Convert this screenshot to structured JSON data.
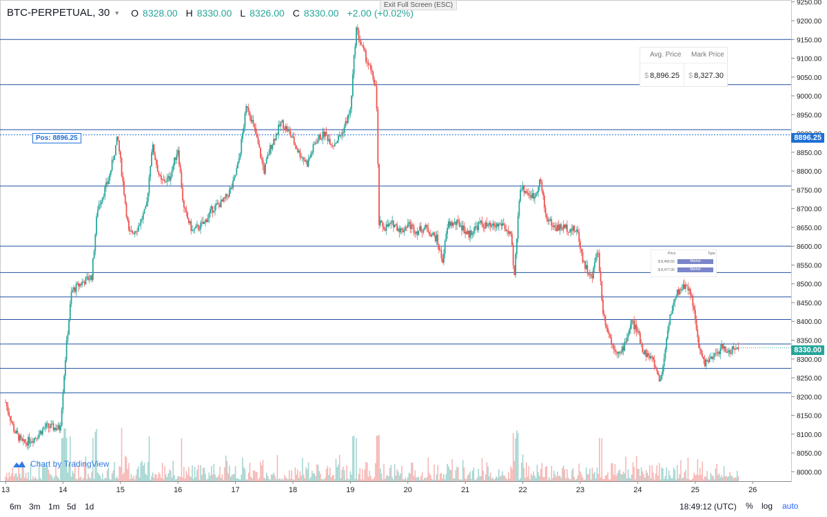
{
  "header": {
    "symbol": "BTC-PERPETUAL, 30",
    "open_label": "O",
    "open": "8328.00",
    "high_label": "H",
    "high": "8330.00",
    "low_label": "L",
    "low": "8326.00",
    "close_label": "C",
    "close": "8330.00",
    "change": "+2.00 (+0.02%)"
  },
  "exit_fullscreen": "Exit Full Screen (ESC)",
  "position_label": "Pos: 8896.25",
  "position_tag": "8896.25",
  "last_price_tag": "8330.00",
  "avg_panel": {
    "avg_header": "Avg. Price",
    "mark_header": "Mark Price",
    "currency": "$",
    "avg_value": "8,896.25",
    "mark_value": "8,327.30"
  },
  "orders_panel": {
    "price_header": "Price",
    "type_header": "Type",
    "rows": [
      {
        "price": "$ 8,499.50",
        "type": "Market"
      },
      {
        "price": "$ 8,477.00",
        "type": "Market"
      }
    ]
  },
  "attribution": "Chart by TradingView",
  "bottom_bar": {
    "ranges": [
      "6m",
      "3m",
      "1m",
      "5d",
      "1d"
    ],
    "clock": "18:49:12 (UTC)",
    "percent": "%",
    "log": "log",
    "auto": "auto"
  },
  "colors": {
    "up": "#26a69a",
    "down": "#ef5350",
    "level_line": "#1e4fa0",
    "position_line": "#1e6fd6",
    "volume_up": "#a5d6d2",
    "volume_down": "#f6b7b5"
  },
  "chart_data": {
    "type": "candlestick",
    "symbol": "BTC-PERPETUAL",
    "timeframe": "30",
    "y_range": [
      7975,
      9255
    ],
    "y_ticks": [
      8000,
      8050,
      8100,
      8150,
      8200,
      8250,
      8300,
      8350,
      8400,
      8450,
      8500,
      8550,
      8600,
      8650,
      8700,
      8750,
      8800,
      8850,
      8900,
      8950,
      9000,
      9050,
      9100,
      9150,
      9200,
      9250
    ],
    "x_ticks": [
      "13",
      "14",
      "15",
      "16",
      "17",
      "18",
      "19",
      "20",
      "21",
      "22",
      "23",
      "24",
      "25",
      "26"
    ],
    "x_range_days": [
      13,
      26
    ],
    "position_price": 8896.25,
    "last_price": 8330.0,
    "horizontal_levels": [
      9150,
      9030,
      8910,
      8760,
      8600,
      8530,
      8465,
      8405,
      8340,
      8275,
      8210
    ],
    "price_path": [
      [
        13.0,
        8185
      ],
      [
        13.15,
        8110
      ],
      [
        13.3,
        8075
      ],
      [
        13.5,
        8090
      ],
      [
        13.7,
        8120
      ],
      [
        13.95,
        8115
      ],
      [
        14.05,
        8320
      ],
      [
        14.15,
        8480
      ],
      [
        14.3,
        8500
      ],
      [
        14.5,
        8520
      ],
      [
        14.6,
        8700
      ],
      [
        14.8,
        8780
      ],
      [
        14.95,
        8890
      ],
      [
        15.05,
        8760
      ],
      [
        15.15,
        8630
      ],
      [
        15.3,
        8650
      ],
      [
        15.45,
        8700
      ],
      [
        15.55,
        8870
      ],
      [
        15.7,
        8770
      ],
      [
        15.85,
        8780
      ],
      [
        16.0,
        8860
      ],
      [
        16.1,
        8700
      ],
      [
        16.25,
        8640
      ],
      [
        16.45,
        8660
      ],
      [
        16.6,
        8700
      ],
      [
        16.8,
        8720
      ],
      [
        16.95,
        8760
      ],
      [
        17.05,
        8820
      ],
      [
        17.2,
        8980
      ],
      [
        17.35,
        8900
      ],
      [
        17.5,
        8800
      ],
      [
        17.6,
        8860
      ],
      [
        17.8,
        8930
      ],
      [
        17.95,
        8900
      ],
      [
        18.1,
        8850
      ],
      [
        18.25,
        8820
      ],
      [
        18.4,
        8880
      ],
      [
        18.55,
        8900
      ],
      [
        18.7,
        8870
      ],
      [
        18.85,
        8900
      ],
      [
        19.0,
        8960
      ],
      [
        19.1,
        9180
      ],
      [
        19.2,
        9130
      ],
      [
        19.3,
        9090
      ],
      [
        19.45,
        9020
      ],
      [
        19.5,
        8660
      ],
      [
        19.6,
        8650
      ],
      [
        19.75,
        8660
      ],
      [
        19.9,
        8640
      ],
      [
        20.0,
        8660
      ],
      [
        20.15,
        8640
      ],
      [
        20.3,
        8650
      ],
      [
        20.5,
        8620
      ],
      [
        20.6,
        8560
      ],
      [
        20.7,
        8660
      ],
      [
        20.9,
        8660
      ],
      [
        21.05,
        8630
      ],
      [
        21.25,
        8660
      ],
      [
        21.45,
        8650
      ],
      [
        21.65,
        8660
      ],
      [
        21.8,
        8620
      ],
      [
        21.85,
        8510
      ],
      [
        21.95,
        8760
      ],
      [
        22.1,
        8740
      ],
      [
        22.2,
        8730
      ],
      [
        22.3,
        8780
      ],
      [
        22.4,
        8680
      ],
      [
        22.55,
        8650
      ],
      [
        22.75,
        8650
      ],
      [
        22.95,
        8640
      ],
      [
        23.05,
        8560
      ],
      [
        23.2,
        8510
      ],
      [
        23.3,
        8600
      ],
      [
        23.4,
        8420
      ],
      [
        23.55,
        8340
      ],
      [
        23.7,
        8310
      ],
      [
        23.9,
        8400
      ],
      [
        24.0,
        8370
      ],
      [
        24.1,
        8320
      ],
      [
        24.25,
        8300
      ],
      [
        24.4,
        8240
      ],
      [
        24.55,
        8410
      ],
      [
        24.7,
        8480
      ],
      [
        24.85,
        8500
      ],
      [
        24.95,
        8460
      ],
      [
        25.05,
        8340
      ],
      [
        25.15,
        8290
      ],
      [
        25.3,
        8300
      ],
      [
        25.45,
        8330
      ],
      [
        25.6,
        8320
      ],
      [
        25.75,
        8330
      ]
    ]
  }
}
